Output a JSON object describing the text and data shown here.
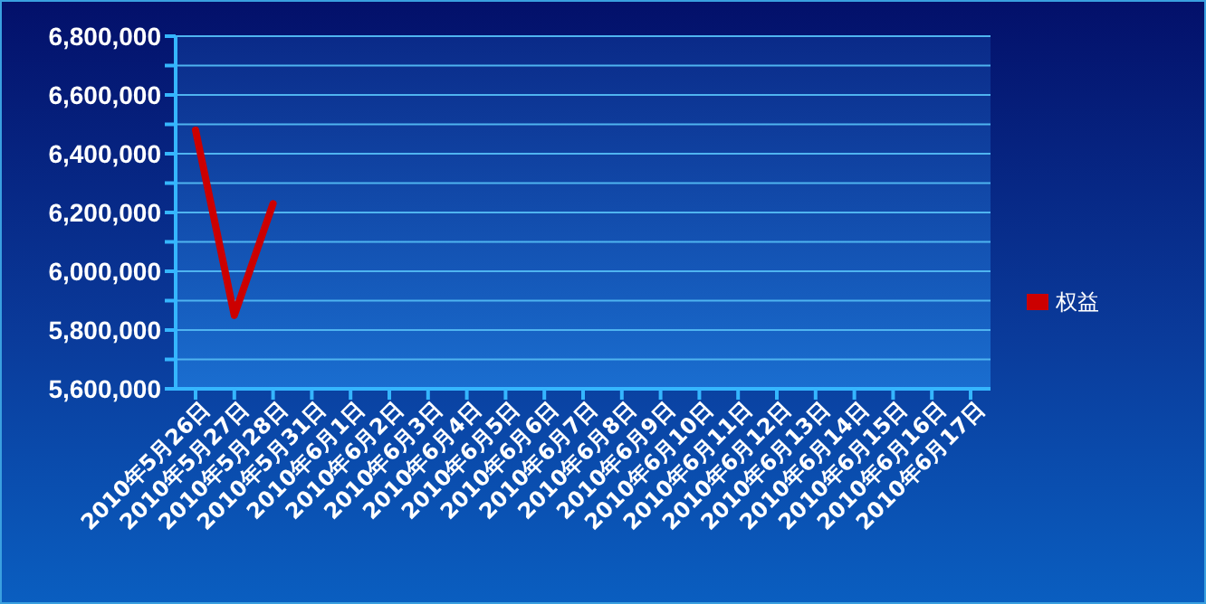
{
  "chart_data": {
    "type": "line",
    "categories": [
      "2010年5月26日",
      "2010年5月27日",
      "2010年5月28日",
      "2010年5月31日",
      "2010年6月1日",
      "2010年6月2日",
      "2010年6月3日",
      "2010年6月4日",
      "2010年6月5日",
      "2010年6月6日",
      "2010年6月7日",
      "2010年6月8日",
      "2010年6月9日",
      "2010年6月10日",
      "2010年6月11日",
      "2010年6月12日",
      "2010年6月13日",
      "2010年6月14日",
      "2010年6月15日",
      "2010年6月16日",
      "2010年6月17日"
    ],
    "series": [
      {
        "name": "权益",
        "color": "#cc0000",
        "values": [
          6480000,
          5850000,
          6230000,
          null,
          null,
          null,
          null,
          null,
          null,
          null,
          null,
          null,
          null,
          null,
          null,
          null,
          null,
          null,
          null,
          null,
          null
        ]
      }
    ],
    "ylim": [
      5600000,
      6800000
    ],
    "yticks": [
      {
        "value": 5600000,
        "label": "5,600,000"
      },
      {
        "value": 5700000,
        "label": null
      },
      {
        "value": 5800000,
        "label": "5,800,000"
      },
      {
        "value": 5900000,
        "label": null
      },
      {
        "value": 6000000,
        "label": "6,000,000"
      },
      {
        "value": 6100000,
        "label": null
      },
      {
        "value": 6200000,
        "label": "6,200,000"
      },
      {
        "value": 6300000,
        "label": null
      },
      {
        "value": 6400000,
        "label": "6,400,000"
      },
      {
        "value": 6500000,
        "label": null
      },
      {
        "value": 6600000,
        "label": "6,600,000"
      },
      {
        "value": 6700000,
        "label": null
      },
      {
        "value": 6800000,
        "label": "6,800,000"
      }
    ],
    "grid": "y",
    "legend": "right",
    "marker": "none",
    "line_style": "solid"
  }
}
